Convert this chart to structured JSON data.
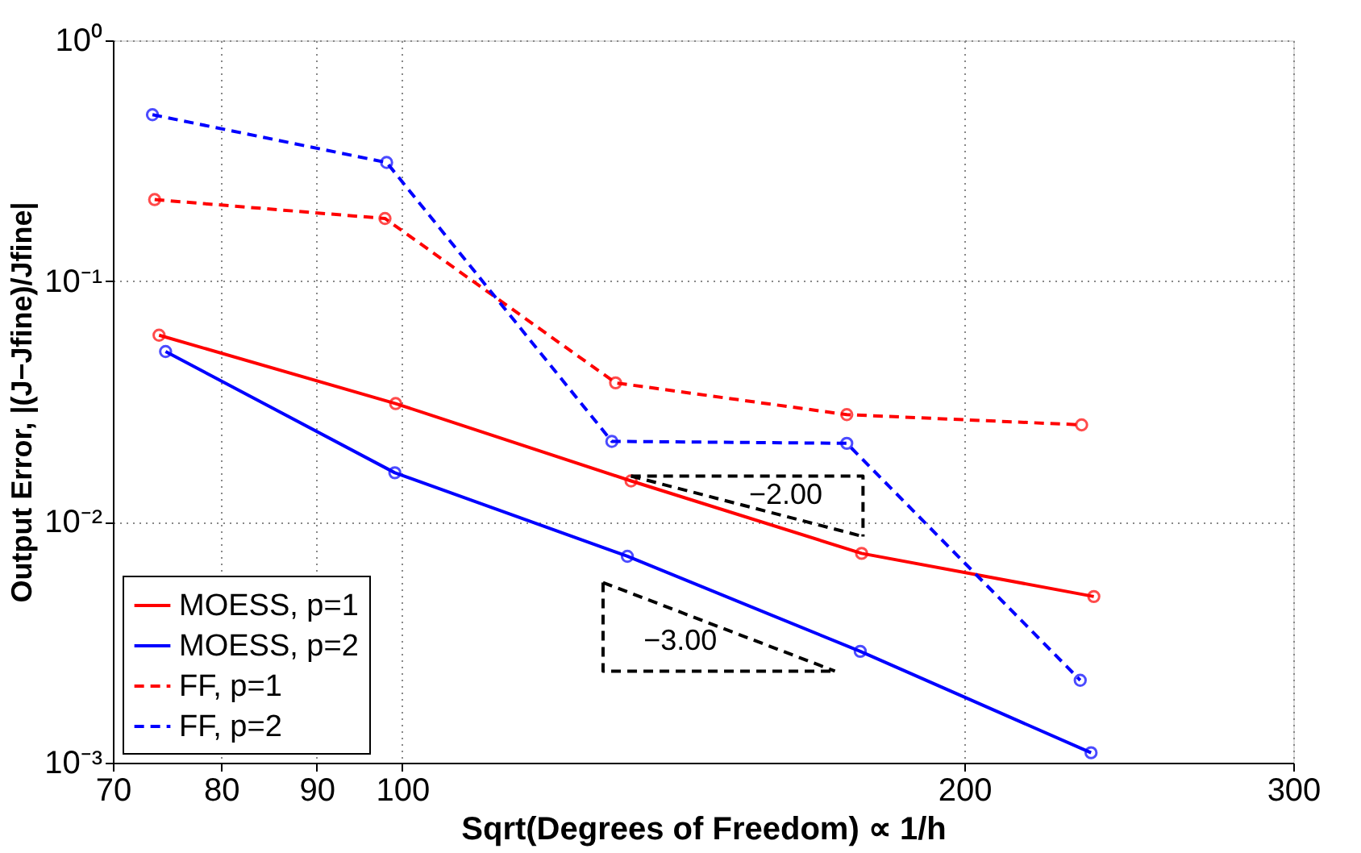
{
  "chart_data": {
    "type": "line",
    "xlabel": "Sqrt(Degrees of Freedom) ∝ 1/h",
    "ylabel": "Output Error, |(J−Jfine)/Jfine|",
    "log": "xy",
    "grid": true,
    "legend": "bottom left",
    "marker": "circle",
    "xlim": [
      70,
      300
    ],
    "xticks": [
      70,
      80,
      90,
      100,
      200,
      300
    ],
    "ylim": [
      0.001,
      1
    ],
    "yticks": [
      {
        "value": 0.001,
        "label": "10⁻³"
      },
      {
        "value": 0.01,
        "label": "10⁻²"
      },
      {
        "value": 0.1,
        "label": "10⁻¹"
      },
      {
        "value": 1,
        "label": "10⁰"
      }
    ],
    "series": [
      {
        "name": "MOESS, p=1",
        "color": "#ff0000",
        "line_style": "solid",
        "x": [
          74.1,
          99.2,
          132.6,
          176.2,
          234.6
        ],
        "values": [
          0.0596,
          0.031,
          0.0148,
          0.0074,
          0.0049
        ]
      },
      {
        "name": "MOESS, p=2",
        "color": "#0000ff",
        "line_style": "solid",
        "x": [
          74.7,
          99.1,
          132,
          175.9,
          233.8
        ],
        "values": [
          0.051,
          0.016,
          0.0072,
          0.0029,
          0.0011
        ]
      },
      {
        "name": "FF, p=1",
        "color": "#ff0000",
        "line_style": "dashed",
        "x": [
          73.7,
          97.9,
          130.1,
          173,
          231.1
        ],
        "values": [
          0.218,
          0.182,
          0.0378,
          0.0279,
          0.0253
        ]
      },
      {
        "name": "FF, p=2",
        "color": "#0000ff",
        "line_style": "dashed",
        "x": [
          73.5,
          98.1,
          129.5,
          173,
          230.7
        ],
        "values": [
          0.491,
          0.311,
          0.0216,
          0.0212,
          0.0022
        ]
      },
      {
        "type": "line",
        "color": "#000000",
        "line_style": "dashed",
        "marker": "none",
        "x": [
          132.6,
          176.5,
          176.5
        ],
        "values": [
          0.0155,
          0.0155,
          0.0087
        ]
      },
      {
        "type": "line",
        "color": "#000000",
        "line_style": "dashed",
        "marker": "none",
        "x": [
          132.6,
          176.5
        ],
        "values": [
          0.0155,
          0.0087
        ]
      },
      {
        "type": "line",
        "color": "#000000",
        "line_style": "dashed",
        "marker": "none",
        "x": [
          128.1,
          128.1,
          170.5
        ],
        "values": [
          0.0056,
          0.0024,
          0.0024
        ]
      },
      {
        "type": "line",
        "color": "#000000",
        "line_style": "dashed",
        "marker": "none",
        "x": [
          128.1,
          170.5
        ],
        "values": [
          0.0056,
          0.0024
        ]
      }
    ],
    "annotations": [
      "−2.00",
      "−3.00"
    ]
  }
}
